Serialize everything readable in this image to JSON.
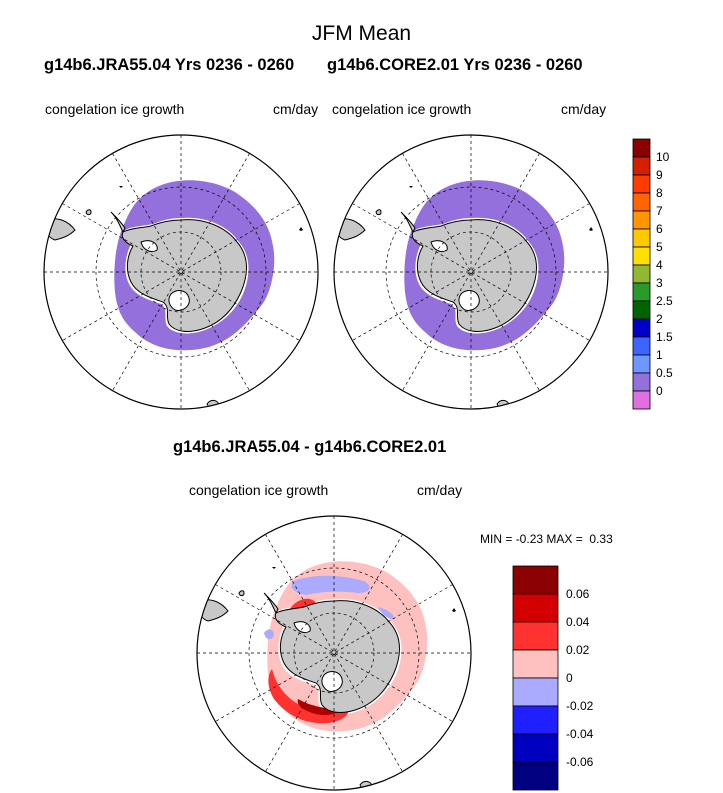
{
  "title": "JFM Mean",
  "panel_left": {
    "header": "g14b6.JRA55.04  Yrs 0236 - 0260",
    "field": "congelation ice growth",
    "units": "cm/day"
  },
  "panel_right": {
    "header": "g14b6.CORE2.01  Yrs 0236 - 0260",
    "field": "congelation ice growth",
    "units": "cm/day"
  },
  "panel_diff": {
    "header": "g14b6.JRA55.04 - g14b6.CORE2.01",
    "field": "congelation ice growth",
    "units": "cm/day",
    "min_label": "MIN =",
    "min_value": "-0.23",
    "max_label": "MAX =",
    "max_value": "0.33"
  },
  "colorbar_main": {
    "labels": [
      "10",
      "9",
      "8",
      "7",
      "6",
      "5",
      "4",
      "3",
      "2.5",
      "2",
      "1.5",
      "1",
      "0.5",
      "0"
    ],
    "colors": [
      "#8b0000",
      "#d42000",
      "#ff3c00",
      "#ff6400",
      "#ff9600",
      "#ffc800",
      "#ffe000",
      "#90b830",
      "#2a9a2a",
      "#006400",
      "#0000c8",
      "#3c64ff",
      "#6e96ff",
      "#9370db",
      "#e070e0"
    ]
  },
  "colorbar_diff": {
    "labels": [
      "0.06",
      "0.04",
      "0.02",
      "0",
      "-0.02",
      "-0.04",
      "-0.06"
    ],
    "colors": [
      "#8b0000",
      "#d20000",
      "#ff3232",
      "#ffc0c0",
      "#aaaaff",
      "#2020ff",
      "#0000c0",
      "#000080"
    ]
  },
  "colors": {
    "land": "#c8c8c8",
    "ice_growth": "#9370db",
    "diff_pos_light": "#ffc0c0",
    "diff_pos_mid": "#ff3232",
    "diff_pos_dark": "#b00000",
    "diff_neg_light": "#aaaaff"
  }
}
